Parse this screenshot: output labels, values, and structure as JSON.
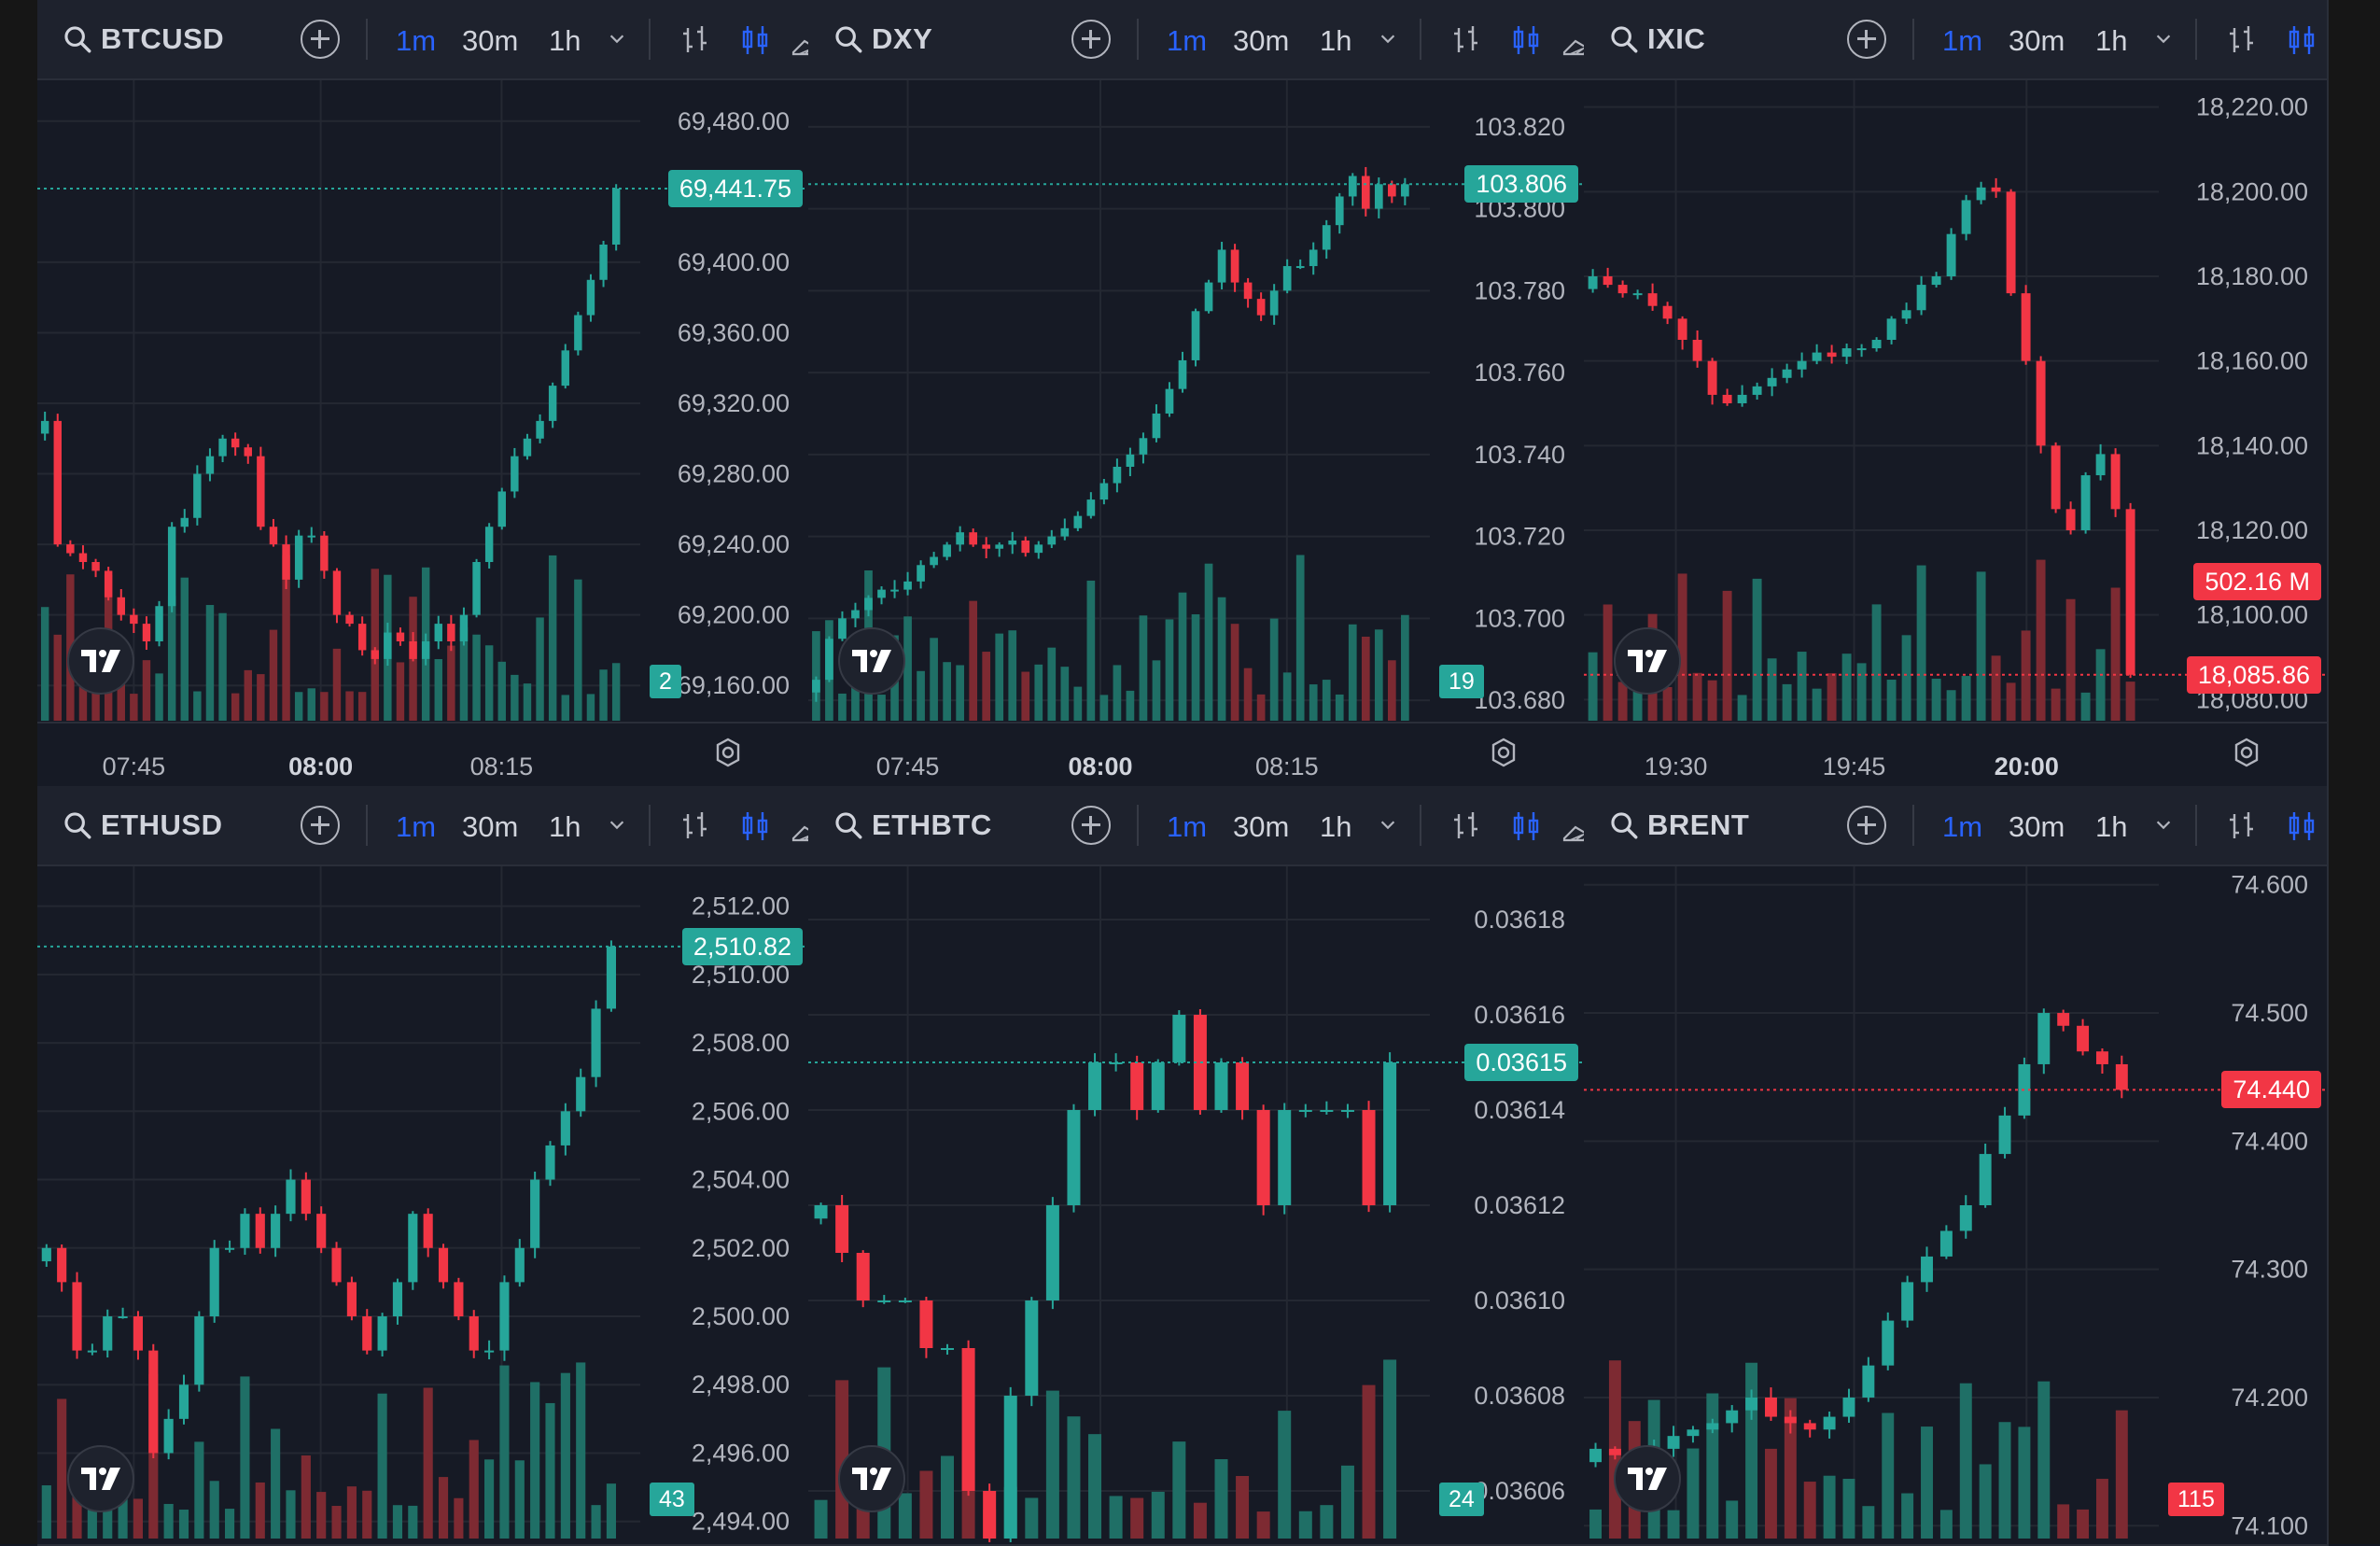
{
  "colors": {
    "up": "#26a69a",
    "down": "#f23645",
    "up_vol": "#1f6f66",
    "down_vol": "#7d2a32",
    "grid": "#242832",
    "accent": "#2962ff"
  },
  "toolbar": {
    "timeframes": [
      "1m",
      "30m",
      "1h"
    ],
    "active_timeframe": "1m",
    "icons": [
      "search-icon",
      "add-compare-icon",
      "chevron-down-icon",
      "bar-style-icon",
      "candle-style-icon",
      "area-style-icon"
    ]
  },
  "panels": [
    {
      "symbol": "BTCUSD",
      "price_ticks": [
        "69,480.00",
        "69,400.00",
        "69,360.00",
        "69,320.00",
        "69,280.00",
        "69,240.00",
        "69,200.00",
        "69,160.00"
      ],
      "time_ticks": [
        {
          "label": "07:45",
          "bold": false
        },
        {
          "label": "08:00",
          "bold": true
        },
        {
          "label": "08:15",
          "bold": false
        }
      ],
      "last_price": "69,441.75",
      "last_dir": "up",
      "volume_badge": "2",
      "volume_dir": "up",
      "settings_icon": true
    },
    {
      "symbol": "DXY",
      "price_ticks": [
        "103.820",
        "103.800",
        "103.780",
        "103.760",
        "103.740",
        "103.720",
        "103.700",
        "103.680"
      ],
      "time_ticks": [
        {
          "label": "07:45",
          "bold": false
        },
        {
          "label": "08:00",
          "bold": true
        },
        {
          "label": "08:15",
          "bold": false
        }
      ],
      "last_price": "103.806",
      "last_dir": "up",
      "volume_badge": "19",
      "volume_dir": "up",
      "settings_icon": true
    },
    {
      "symbol": "IXIC",
      "price_ticks": [
        "18,220.00",
        "18,200.00",
        "18,180.00",
        "18,160.00",
        "18,140.00",
        "18,120.00",
        "18,100.00",
        "18,080.00"
      ],
      "time_ticks": [
        {
          "label": "19:30",
          "bold": false
        },
        {
          "label": "19:45",
          "bold": false
        },
        {
          "label": "20:00",
          "bold": true
        }
      ],
      "last_price": "18,085.86",
      "last_dir": "down",
      "volume_badge": "502.16 M",
      "volume_dir": "down",
      "settings_icon": true
    },
    {
      "symbol": "ETHUSD",
      "price_ticks": [
        "2,512.00",
        "2,510.00",
        "2,508.00",
        "2,506.00",
        "2,504.00",
        "2,502.00",
        "2,500.00",
        "2,498.00",
        "2,496.00",
        "2,494.00"
      ],
      "time_ticks": [],
      "last_price": "2,510.82",
      "last_dir": "up",
      "volume_badge": "43",
      "volume_dir": "up",
      "settings_icon": false
    },
    {
      "symbol": "ETHBTC",
      "price_ticks": [
        "0.03618",
        "0.03616",
        "0.03614",
        "0.03612",
        "0.03610",
        "0.03608",
        "0.03606"
      ],
      "time_ticks": [],
      "last_price": "0.03615",
      "last_dir": "up",
      "volume_badge": "24",
      "volume_dir": "up",
      "settings_icon": false
    },
    {
      "symbol": "BRENT",
      "price_ticks": [
        "74.600",
        "74.500",
        "74.400",
        "74.300",
        "74.200",
        "74.100"
      ],
      "time_ticks": [],
      "last_price": "74.440",
      "last_dir": "down",
      "volume_badge": "115",
      "volume_dir": "down",
      "settings_icon": false
    }
  ],
  "chart_data": [
    {
      "type": "candlestick",
      "symbol": "BTCUSD",
      "interval": "1m",
      "ylim": [
        69140,
        69500
      ],
      "last": 69441.75,
      "closes": [
        69310,
        69240,
        69235,
        69230,
        69225,
        69210,
        69200,
        69195,
        69185,
        69205,
        69250,
        69255,
        69280,
        69290,
        69300,
        69295,
        69290,
        69250,
        69240,
        69220,
        69245,
        69245,
        69225,
        69200,
        69195,
        69180,
        69175,
        69190,
        69185,
        69175,
        69185,
        69195,
        69185,
        69200,
        69230,
        69250,
        69270,
        69290,
        69300,
        69310,
        69330,
        69350,
        69370,
        69390,
        69410,
        69441.75
      ]
    },
    {
      "type": "candlestick",
      "symbol": "DXY",
      "interval": "1m",
      "ylim": [
        103.675,
        103.83
      ],
      "last": 103.806,
      "closes": [
        103.685,
        103.695,
        103.7,
        103.702,
        103.705,
        103.707,
        103.707,
        103.709,
        103.713,
        103.715,
        103.718,
        103.721,
        103.718,
        103.717,
        103.718,
        103.719,
        103.716,
        103.718,
        103.72,
        103.722,
        103.725,
        103.729,
        103.733,
        103.737,
        103.74,
        103.744,
        103.75,
        103.756,
        103.763,
        103.775,
        103.782,
        103.79,
        103.782,
        103.778,
        103.774,
        103.78,
        103.786,
        103.786,
        103.79,
        103.796,
        103.803,
        103.808,
        103.8,
        103.806,
        103.803,
        103.806
      ]
    },
    {
      "type": "candlestick",
      "symbol": "IXIC",
      "interval": "1m",
      "ylim": [
        18075,
        18225
      ],
      "last": 18085.86,
      "closes": [
        18180,
        18178,
        18176,
        18176,
        18173,
        18170,
        18165,
        18160,
        18152,
        18150,
        18152,
        18154,
        18156,
        18158,
        18160,
        18162,
        18161,
        18163,
        18163,
        18165,
        18170,
        18172,
        18178,
        18180,
        18190,
        18198,
        18201,
        18200,
        18176,
        18160,
        18140,
        18125,
        18120,
        18133,
        18138,
        18125,
        18085.86
      ]
    },
    {
      "type": "candlestick",
      "symbol": "ETHUSD",
      "interval": "1m",
      "ylim": [
        2493.5,
        2513
      ],
      "last": 2510.82,
      "closes": [
        2502,
        2501,
        2499,
        2499,
        2500,
        2500,
        2499,
        2496,
        2497,
        2498,
        2500,
        2502,
        2502,
        2503,
        2502,
        2503,
        2504,
        2503,
        2502,
        2501,
        2500,
        2499,
        2500,
        2501,
        2503,
        2502,
        2501,
        2500,
        2499,
        2499,
        2501,
        2502,
        2504,
        2505,
        2506,
        2507,
        2509,
        2510.82
      ]
    },
    {
      "type": "candlestick",
      "symbol": "ETHBTC",
      "interval": "1m",
      "ylim": [
        0.03605,
        0.03619
      ],
      "last": 0.03615,
      "closes": [
        0.03612,
        0.03611,
        0.0361,
        0.0361,
        0.0361,
        0.03609,
        0.03609,
        0.03606,
        0.03605,
        0.03608,
        0.0361,
        0.03612,
        0.03614,
        0.03615,
        0.03615,
        0.03614,
        0.03615,
        0.03616,
        0.03614,
        0.03615,
        0.03614,
        0.03612,
        0.03614,
        0.03614,
        0.03614,
        0.03614,
        0.03612,
        0.03615
      ]
    },
    {
      "type": "candlestick",
      "symbol": "BRENT",
      "interval": "1m",
      "ylim": [
        74.09,
        74.61
      ],
      "last": 74.44,
      "closes": [
        74.16,
        74.155,
        74.15,
        74.16,
        74.17,
        74.175,
        74.18,
        74.19,
        74.2,
        74.185,
        74.18,
        74.175,
        74.185,
        74.2,
        74.225,
        74.26,
        74.29,
        74.31,
        74.33,
        74.35,
        74.39,
        74.42,
        74.46,
        74.5,
        74.49,
        74.47,
        74.46,
        74.44
      ]
    }
  ]
}
